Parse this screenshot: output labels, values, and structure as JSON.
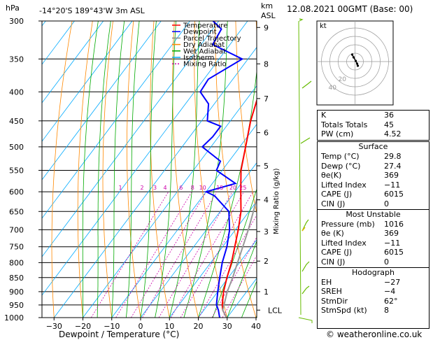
{
  "header": {
    "location": "-14°20'S  189°43'W  3m  ASL",
    "datetime": "12.08.2021  00GMT  (Base: 00)",
    "hpa_label": "hPa",
    "km_label": "km",
    "asl_label": "ASL"
  },
  "footer": {
    "credit": "© weatheronline.co.uk"
  },
  "legend": [
    {
      "label": "Temperature",
      "color": "#ff0000",
      "dash": ""
    },
    {
      "label": "Dewpoint",
      "color": "#0000ff",
      "dash": ""
    },
    {
      "label": "Parcel Trajectory",
      "color": "#888888",
      "dash": ""
    },
    {
      "label": "Dry Adiabat",
      "color": "#ff8800",
      "dash": ""
    },
    {
      "label": "Wet Adiabat",
      "color": "#00aa00",
      "dash": ""
    },
    {
      "label": "Isotherm",
      "color": "#00aaff",
      "dash": ""
    },
    {
      "label": "Mixing Ratio",
      "color": "#cc00aa",
      "dash": "2,2"
    }
  ],
  "chart_data": {
    "type": "line",
    "xlabel": "Dewpoint / Temperature (°C)",
    "ylabel": "",
    "right_axis_label": "Mixing Ratio (g/kg)",
    "x_ticks": [
      -30,
      -20,
      -10,
      0,
      10,
      20,
      30,
      40
    ],
    "x_tick_labels": [
      "−30",
      "−20",
      "−10",
      "0",
      "10",
      "20",
      "30",
      "40"
    ],
    "xlim": [
      -35,
      40
    ],
    "pressure_levels": [
      300,
      350,
      400,
      450,
      500,
      550,
      600,
      650,
      700,
      750,
      800,
      850,
      900,
      950,
      1000
    ],
    "pressure_range": [
      300,
      1000
    ],
    "km_ticks": [
      {
        "label": "1",
        "p": 900
      },
      {
        "label": "2",
        "p": 795
      },
      {
        "label": "3",
        "p": 705
      },
      {
        "label": "4",
        "p": 620
      },
      {
        "label": "5",
        "p": 540
      },
      {
        "label": "6",
        "p": 472
      },
      {
        "label": "7",
        "p": 411
      },
      {
        "label": "8",
        "p": 357
      },
      {
        "label": "9",
        "p": 308
      }
    ],
    "lcl": {
      "label": "LCL",
      "p": 970
    },
    "mixing_ratio_labels": [
      {
        "label": "1",
        "x": -7.0
      },
      {
        "label": "2",
        "x": 0.5
      },
      {
        "label": "3",
        "x": 5.0
      },
      {
        "label": "4",
        "x": 8.5
      },
      {
        "label": "6",
        "x": 14.0
      },
      {
        "label": "8",
        "x": 18.0
      },
      {
        "label": "10",
        "x": 21.5
      },
      {
        "label": "15",
        "x": 27.5
      },
      {
        "label": "20",
        "x": 32.0
      },
      {
        "label": "25",
        "x": 35.5
      }
    ],
    "series": [
      {
        "name": "Temperature",
        "color": "#ff0000",
        "points": [
          [
            1000,
            29.8
          ],
          [
            970,
            26.5
          ],
          [
            950,
            25.0
          ],
          [
            900,
            22.0
          ],
          [
            850,
            19.5
          ],
          [
            800,
            17.2
          ],
          [
            750,
            14.2
          ],
          [
            700,
            11.0
          ],
          [
            650,
            7.2
          ],
          [
            600,
            2.0
          ],
          [
            550,
            -3.5
          ],
          [
            500,
            -8.0
          ],
          [
            450,
            -13.0
          ],
          [
            400,
            -17.5
          ],
          [
            350,
            -24.5
          ],
          [
            300,
            -32.0
          ]
        ]
      },
      {
        "name": "Dewpoint",
        "color": "#0000ff",
        "points": [
          [
            1000,
            27.4
          ],
          [
            970,
            25.0
          ],
          [
            950,
            23.0
          ],
          [
            900,
            20.0
          ],
          [
            850,
            17.0
          ],
          [
            800,
            14.0
          ],
          [
            750,
            11.5
          ],
          [
            700,
            8.0
          ],
          [
            650,
            3.0
          ],
          [
            610,
            -6.0
          ],
          [
            600,
            -10.0
          ],
          [
            580,
            -2.0
          ],
          [
            550,
            -12.0
          ],
          [
            530,
            -13.0
          ],
          [
            500,
            -23.0
          ],
          [
            480,
            -22.0
          ],
          [
            460,
            -22.0
          ],
          [
            450,
            -28.0
          ],
          [
            420,
            -32.0
          ],
          [
            400,
            -38.0
          ],
          [
            380,
            -38.5
          ],
          [
            350,
            -32.0
          ],
          [
            330,
            -46.0
          ],
          [
            310,
            -47.0
          ],
          [
            300,
            -52.0
          ]
        ]
      },
      {
        "name": "Parcel Trajectory",
        "color": "#999999",
        "points": [
          [
            1000,
            29.8
          ],
          [
            970,
            26.5
          ],
          [
            900,
            23.3
          ],
          [
            850,
            21.5
          ],
          [
            800,
            19.3
          ],
          [
            750,
            17.0
          ],
          [
            700,
            14.5
          ],
          [
            650,
            11.5
          ],
          [
            600,
            8.2
          ],
          [
            550,
            4.3
          ],
          [
            500,
            0.0
          ],
          [
            450,
            -4.8
          ],
          [
            400,
            -10.5
          ],
          [
            350,
            -17.5
          ],
          [
            300,
            -26.0
          ]
        ]
      }
    ]
  },
  "hodograph": {
    "label": "kt",
    "ring_labels": [
      "20",
      "40"
    ],
    "points": [
      [
        -2.0,
        5.0
      ],
      [
        -1.0,
        3.0
      ],
      [
        0.5,
        0.5
      ],
      [
        1.5,
        -1.5
      ],
      [
        2.0,
        -3.0
      ]
    ]
  },
  "indices": [
    {
      "label": "K",
      "value": "36"
    },
    {
      "label": "Totals Totals",
      "value": "45"
    },
    {
      "label": "PW (cm)",
      "value": "4.52"
    }
  ],
  "surface": {
    "title": "Surface",
    "rows": [
      {
        "label": "Temp (°C)",
        "value": "29.8"
      },
      {
        "label": "Dewp (°C)",
        "value": "27.4"
      },
      {
        "label": "θe(K)",
        "value": "369"
      },
      {
        "label": "Lifted Index",
        "value": "−11"
      },
      {
        "label": "CAPE (J)",
        "value": "6015"
      },
      {
        "label": "CIN (J)",
        "value": "0"
      }
    ]
  },
  "most_unstable": {
    "title": "Most Unstable",
    "rows": [
      {
        "label": "Pressure (mb)",
        "value": "1016"
      },
      {
        "label": "θe (K)",
        "value": "369"
      },
      {
        "label": "Lifted Index",
        "value": "−11"
      },
      {
        "label": "CAPE (J)",
        "value": "6015"
      },
      {
        "label": "CIN (J)",
        "value": "0"
      }
    ]
  },
  "hodograph_table": {
    "title": "Hodograph",
    "rows": [
      {
        "label": "EH",
        "value": "−27"
      },
      {
        "label": "SREH",
        "value": "−4"
      },
      {
        "label": "StmDir",
        "value": "62°"
      },
      {
        "label": "StmSpd (kt)",
        "value": "8"
      }
    ]
  },
  "wind_barbs": [
    {
      "p": 300
    },
    {
      "p": 400
    },
    {
      "p": 500
    },
    {
      "p": 700
    },
    {
      "p": 850
    },
    {
      "p": 900
    },
    {
      "p": 1000
    }
  ]
}
